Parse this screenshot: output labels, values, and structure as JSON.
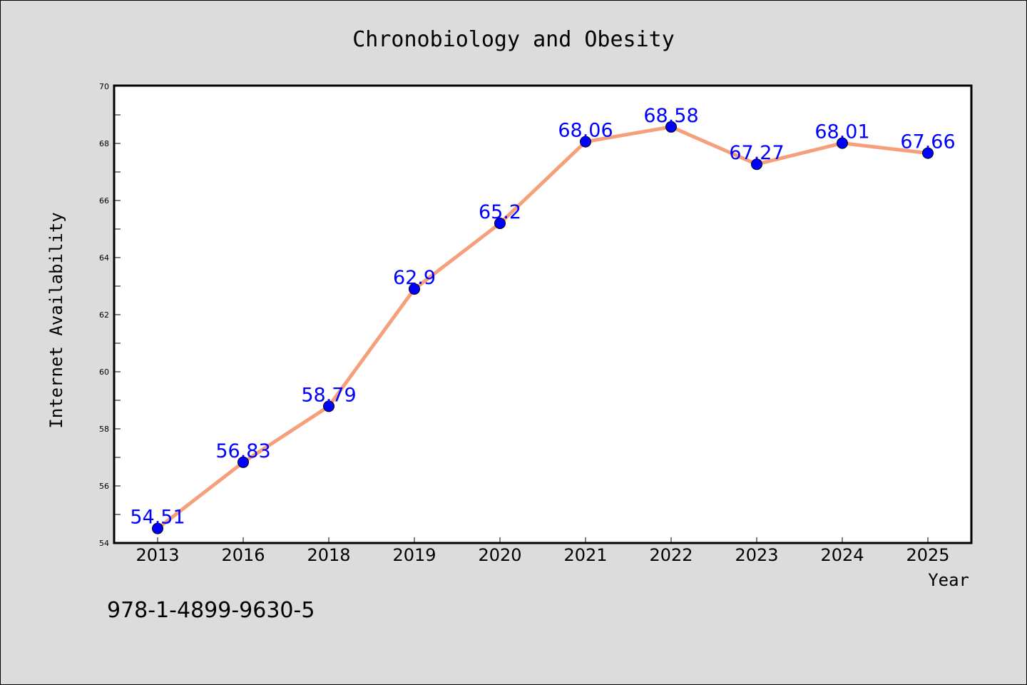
{
  "chart_data": {
    "type": "line",
    "title": "Chronobiology and Obesity",
    "xlabel": "Year",
    "ylabel": "Internet Availability",
    "categories": [
      "2013",
      "2016",
      "2018",
      "2019",
      "2020",
      "2021",
      "2022",
      "2023",
      "2024",
      "2025"
    ],
    "series": [
      {
        "values": [
          54.51,
          56.83,
          58.79,
          62.9,
          65.2,
          68.06,
          68.58,
          67.27,
          68.01,
          67.66
        ],
        "labels": [
          "54.51",
          "56.83",
          "58.79",
          "62.9",
          "65.2",
          "68.06",
          "68.58",
          "67.27",
          "68.01",
          "67.66"
        ],
        "line_color": "#f5a07a",
        "marker_color": "#0000ff"
      }
    ],
    "ylim": [
      54,
      70
    ],
    "yticks": [
      "54",
      "56",
      "58",
      "60",
      "62",
      "64",
      "66",
      "68",
      "70"
    ],
    "grid": false,
    "legend": "none"
  },
  "footer": {
    "isbn": "978-1-4899-9630-5"
  }
}
